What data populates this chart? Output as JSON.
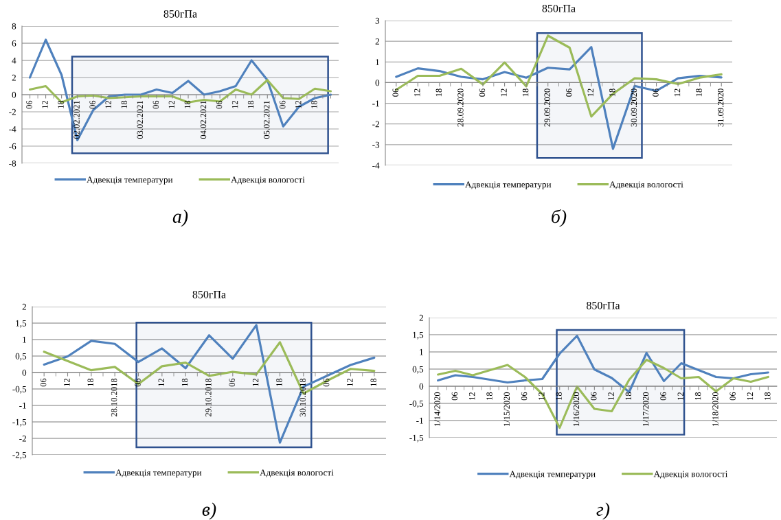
{
  "chart_data": [
    {
      "type": "line",
      "title": "850гПа",
      "x": [
        "2021-02-01T06:00",
        "2021-02-01T12:00",
        "2021-02-01T18:00",
        "2021-02-02T00:00",
        "2021-02-02T06:00",
        "2021-02-02T12:00",
        "2021-02-02T18:00",
        "2021-02-03T00:00",
        "2021-02-03T06:00",
        "2021-02-03T12:00",
        "2021-02-03T18:00",
        "2021-02-04T00:00",
        "2021-02-04T06:00",
        "2021-02-04T12:00",
        "2021-02-04T18:00",
        "2021-02-05T00:00",
        "2021-02-05T06:00",
        "2021-02-05T12:00",
        "2021-02-05T18:00",
        "2021-02-06T00:00"
      ],
      "series": [
        {
          "name": "Адвекція температури",
          "color": "#4f81bd",
          "values": [
            2.0,
            6.4,
            2.3,
            -5.3,
            -1.8,
            -0.2,
            0.0,
            0.0,
            0.6,
            0.2,
            1.6,
            0.0,
            0.4,
            1.0,
            4.0,
            1.7,
            -3.7,
            -1.4,
            -0.4,
            0.0
          ]
        },
        {
          "name": "Адвекція вологості",
          "color": "#9bbb59",
          "values": [
            0.6,
            1.0,
            -0.9,
            -0.2,
            -0.1,
            -0.4,
            -0.3,
            -0.2,
            -0.2,
            -0.2,
            -0.9,
            -0.6,
            -0.8,
            0.6,
            0.0,
            1.7,
            -0.4,
            -0.5,
            0.7,
            0.4
          ]
        }
      ],
      "xlim": [
        "2021-02-01T03:00",
        "2021-02-06T03:00"
      ],
      "xticks": [
        {
          "value": "2021-02-01T06:00",
          "label": "06"
        },
        {
          "value": "2021-02-01T12:00",
          "label": "12"
        },
        {
          "value": "2021-02-01T18:00",
          "label": "18"
        },
        {
          "value": "2021-02-02T00:00",
          "label": "02.02.2021"
        },
        {
          "value": "2021-02-02T06:00",
          "label": "06"
        },
        {
          "value": "2021-02-02T12:00",
          "label": "12"
        },
        {
          "value": "2021-02-02T18:00",
          "label": "18"
        },
        {
          "value": "2021-02-03T00:00",
          "label": "03.02.2021"
        },
        {
          "value": "2021-02-03T06:00",
          "label": "06"
        },
        {
          "value": "2021-02-03T12:00",
          "label": "12"
        },
        {
          "value": "2021-02-03T18:00",
          "label": "18"
        },
        {
          "value": "2021-02-04T00:00",
          "label": "04.02.2021"
        },
        {
          "value": "2021-02-04T06:00",
          "label": "06"
        },
        {
          "value": "2021-02-04T12:00",
          "label": "12"
        },
        {
          "value": "2021-02-04T18:00",
          "label": "18"
        },
        {
          "value": "2021-02-05T00:00",
          "label": "05.02.2021"
        },
        {
          "value": "2021-02-05T06:00",
          "label": "06"
        },
        {
          "value": "2021-02-05T12:00",
          "label": "12"
        },
        {
          "value": "2021-02-05T18:00",
          "label": "18"
        },
        {
          "value": "2021-02-06T00:00",
          "label": null
        }
      ],
      "ylim": [
        -8,
        8
      ],
      "yticks": [
        -8,
        -6,
        -4,
        -2,
        0,
        2,
        4,
        6,
        8
      ],
      "grid": "y",
      "legend": "bottom",
      "bands": [
        {
          "axis": "x",
          "from": "2021-02-01T22:00",
          "to": "2021-02-05T23:00",
          "color": "#2f528f"
        }
      ],
      "annotations": [
        "а)"
      ]
    },
    {
      "type": "line",
      "title": "850гПа",
      "x": [
        "2020-09-27T06:00",
        "2020-09-27T12:00",
        "2020-09-27T18:00",
        "2020-09-28T00:00",
        "2020-09-28T06:00",
        "2020-09-28T12:00",
        "2020-09-28T18:00",
        "2020-09-29T00:00",
        "2020-09-29T06:00",
        "2020-09-29T12:00",
        "2020-09-29T18:00",
        "2020-09-30T00:00",
        "2020-09-30T06:00",
        "2020-09-30T12:00",
        "2020-09-30T18:00",
        "2020-10-01T00:00"
      ],
      "series": [
        {
          "name": "Адвекція температури",
          "color": "#4f81bd",
          "values": [
            0.28,
            0.69,
            0.56,
            0.28,
            0.16,
            0.51,
            0.24,
            0.72,
            0.64,
            1.72,
            -3.2,
            -0.16,
            -0.4,
            0.21,
            0.33,
            0.25
          ]
        },
        {
          "name": "Адвекція вологості",
          "color": "#9bbb59",
          "values": [
            -0.35,
            0.33,
            0.33,
            0.67,
            -0.09,
            0.97,
            -0.18,
            2.27,
            1.69,
            -1.64,
            -0.54,
            0.21,
            0.16,
            -0.07,
            0.24,
            0.4
          ]
        }
      ],
      "xlim": [
        "2020-09-27T03:00",
        "2020-10-01T03:00"
      ],
      "xticks": [
        {
          "value": "2020-09-27T06:00",
          "label": "06"
        },
        {
          "value": "2020-09-27T12:00",
          "label": "12"
        },
        {
          "value": "2020-09-27T18:00",
          "label": "18"
        },
        {
          "value": "2020-09-28T00:00",
          "label": "28.09.2020"
        },
        {
          "value": "2020-09-28T06:00",
          "label": "06"
        },
        {
          "value": "2020-09-28T12:00",
          "label": "12"
        },
        {
          "value": "2020-09-28T18:00",
          "label": "18"
        },
        {
          "value": "2020-09-29T00:00",
          "label": "29.09.2020"
        },
        {
          "value": "2020-09-29T06:00",
          "label": "06"
        },
        {
          "value": "2020-09-29T12:00",
          "label": "12"
        },
        {
          "value": "2020-09-29T18:00",
          "label": "18"
        },
        {
          "value": "2020-09-30T00:00",
          "label": "30.09.2020"
        },
        {
          "value": "2020-09-30T06:00",
          "label": "06"
        },
        {
          "value": "2020-09-30T12:00",
          "label": "12"
        },
        {
          "value": "2020-09-30T18:00",
          "label": "18"
        },
        {
          "value": "2020-10-01T00:00",
          "label": "31.09.2020"
        }
      ],
      "ylim": [
        -4,
        3
      ],
      "yticks": [
        -4,
        -3,
        -2,
        -1,
        0,
        1,
        2,
        3
      ],
      "grid": "y",
      "legend": "bottom",
      "bands": [
        {
          "axis": "x",
          "from": "2020-09-28T21:00",
          "to": "2020-09-30T02:00",
          "color": "#2f528f"
        }
      ],
      "annotations": [
        "б)"
      ]
    },
    {
      "type": "line",
      "title": "850гПа",
      "x": [
        "2018-10-27T06:00",
        "2018-10-27T12:00",
        "2018-10-27T18:00",
        "2018-10-28T00:00",
        "2018-10-28T06:00",
        "2018-10-28T12:00",
        "2018-10-28T18:00",
        "2018-10-29T00:00",
        "2018-10-29T06:00",
        "2018-10-29T12:00",
        "2018-10-29T18:00",
        "2018-10-30T00:00",
        "2018-10-30T06:00",
        "2018-10-30T12:00",
        "2018-10-30T18:00"
      ],
      "series": [
        {
          "name": "Адвекція температури",
          "color": "#4f81bd",
          "values": [
            0.24,
            0.49,
            0.96,
            0.87,
            0.32,
            0.73,
            0.13,
            1.13,
            0.42,
            1.44,
            -2.13,
            -0.43,
            -0.1,
            0.23,
            0.45
          ]
        },
        {
          "name": "Адвекція вологості",
          "color": "#9bbb59",
          "values": [
            0.63,
            0.35,
            0.07,
            0.17,
            -0.35,
            0.19,
            0.3,
            -0.1,
            0.02,
            -0.06,
            0.92,
            -0.64,
            -0.25,
            0.11,
            0.05
          ]
        }
      ],
      "xlim": [
        "2018-10-27T03:00",
        "2018-10-30T21:00"
      ],
      "xticks": [
        {
          "value": "2018-10-27T06:00",
          "label": "06"
        },
        {
          "value": "2018-10-27T12:00",
          "label": "12"
        },
        {
          "value": "2018-10-27T18:00",
          "label": "18"
        },
        {
          "value": "2018-10-28T00:00",
          "label": "28.10.2018"
        },
        {
          "value": "2018-10-28T06:00",
          "label": "06"
        },
        {
          "value": "2018-10-28T12:00",
          "label": "12"
        },
        {
          "value": "2018-10-28T18:00",
          "label": "18"
        },
        {
          "value": "2018-10-29T00:00",
          "label": "29.10.2018"
        },
        {
          "value": "2018-10-29T06:00",
          "label": "06"
        },
        {
          "value": "2018-10-29T12:00",
          "label": "12"
        },
        {
          "value": "2018-10-29T18:00",
          "label": "18"
        },
        {
          "value": "2018-10-30T00:00",
          "label": "30.10.2018"
        },
        {
          "value": "2018-10-30T06:00",
          "label": "06"
        },
        {
          "value": "2018-10-30T12:00",
          "label": "12"
        },
        {
          "value": "2018-10-30T18:00",
          "label": "18"
        }
      ],
      "ylim": [
        -2.5,
        2
      ],
      "yticks": [
        {
          "value": -2.5,
          "label": "-2,5"
        },
        -2,
        {
          "value": -1.5,
          "label": "-1,5"
        },
        -1,
        {
          "value": -0.5,
          "label": "-0,5"
        },
        0,
        {
          "value": 0.5,
          "label": "0,5"
        },
        1,
        {
          "value": 1.5,
          "label": "1,5"
        },
        2
      ],
      "grid": "y",
      "legend": "bottom",
      "bands": [
        {
          "axis": "x",
          "from": "2018-10-28T05:30",
          "to": "2018-10-30T02:00",
          "color": "#2f528f"
        }
      ],
      "annotations": [
        "в)"
      ]
    },
    {
      "type": "line",
      "title": "850гПа",
      "x": [
        "2020-01-14T00:00",
        "2020-01-14T06:00",
        "2020-01-14T12:00",
        "2020-01-14T18:00",
        "2020-01-15T00:00",
        "2020-01-15T06:00",
        "2020-01-15T12:00",
        "2020-01-15T18:00",
        "2020-01-16T00:00",
        "2020-01-16T06:00",
        "2020-01-16T12:00",
        "2020-01-16T18:00",
        "2020-01-17T00:00",
        "2020-01-17T06:00",
        "2020-01-17T12:00",
        "2020-01-17T18:00",
        "2020-01-18T00:00",
        "2020-01-18T06:00",
        "2020-01-18T12:00",
        "2020-01-18T18:00"
      ],
      "series": [
        {
          "name": "Адвекція температури",
          "color": "#4f81bd",
          "values": [
            0.17,
            0.32,
            0.27,
            0.19,
            0.11,
            0.17,
            0.21,
            0.95,
            1.47,
            0.49,
            0.24,
            -0.17,
            0.97,
            0.15,
            0.67,
            0.47,
            0.27,
            0.23,
            0.35,
            0.4
          ]
        },
        {
          "name": "Адвекція вологості",
          "color": "#9bbb59",
          "values": [
            0.34,
            0.45,
            0.32,
            0.47,
            0.62,
            0.27,
            -0.23,
            -1.21,
            -0.01,
            -0.66,
            -0.73,
            0.19,
            0.77,
            0.53,
            0.23,
            0.27,
            -0.15,
            0.23,
            0.13,
            0.27
          ]
        }
      ],
      "xlim": [
        "2020-01-13T21:00",
        "2020-01-18T21:00"
      ],
      "xticks": [
        {
          "value": "2020-01-14T00:00",
          "label": "1/14/2020"
        },
        {
          "value": "2020-01-14T06:00",
          "label": "06"
        },
        {
          "value": "2020-01-14T12:00",
          "label": "12"
        },
        {
          "value": "2020-01-14T18:00",
          "label": "18"
        },
        {
          "value": "2020-01-15T00:00",
          "label": "1/15/2020"
        },
        {
          "value": "2020-01-15T06:00",
          "label": "06"
        },
        {
          "value": "2020-01-15T12:00",
          "label": "12"
        },
        {
          "value": "2020-01-15T18:00",
          "label": "18"
        },
        {
          "value": "2020-01-16T00:00",
          "label": "1/16/2020"
        },
        {
          "value": "2020-01-16T06:00",
          "label": "06"
        },
        {
          "value": "2020-01-16T12:00",
          "label": "12"
        },
        {
          "value": "2020-01-16T18:00",
          "label": "18"
        },
        {
          "value": "2020-01-17T00:00",
          "label": "1/17/2020"
        },
        {
          "value": "2020-01-17T06:00",
          "label": "06"
        },
        {
          "value": "2020-01-17T12:00",
          "label": "12"
        },
        {
          "value": "2020-01-17T18:00",
          "label": "18"
        },
        {
          "value": "2020-01-18T00:00",
          "label": "1/18/2020"
        },
        {
          "value": "2020-01-18T06:00",
          "label": "06"
        },
        {
          "value": "2020-01-18T12:00",
          "label": "12"
        },
        {
          "value": "2020-01-18T18:00",
          "label": "18"
        }
      ],
      "ylim": [
        -1.5,
        2
      ],
      "yticks": [
        {
          "value": -1.5,
          "label": "-1,5"
        },
        -1,
        {
          "value": -0.5,
          "label": "-0,5"
        },
        0,
        {
          "value": 0.5,
          "label": "0,5"
        },
        1,
        {
          "value": 1.5,
          "label": "1,5"
        },
        2
      ],
      "grid": "y",
      "legend": "bottom",
      "bands": [
        {
          "axis": "x",
          "from": "2020-01-15T17:00",
          "to": "2020-01-17T13:00",
          "color": "#2f528f"
        }
      ],
      "annotations": [
        "г)"
      ]
    }
  ]
}
